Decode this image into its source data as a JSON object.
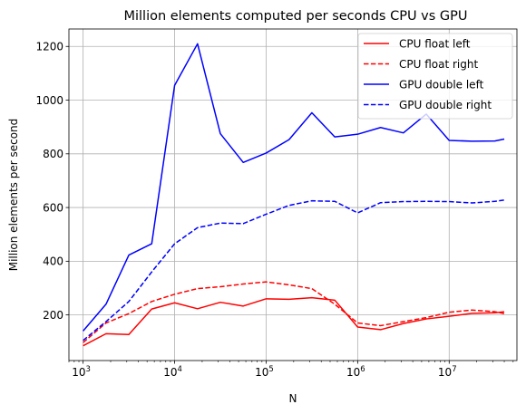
{
  "chart_data": {
    "type": "line",
    "title": "Million elements computed per seconds CPU vs GPU",
    "xlabel": "N",
    "ylabel": "Million elements per second",
    "xscale": "log",
    "xlim": [
      700,
      55000000
    ],
    "ylim": [
      30,
      1265
    ],
    "grid": true,
    "legend_position": "top-right",
    "x_ticks": [
      {
        "value": 1000,
        "base": "10",
        "exp": "3"
      },
      {
        "value": 10000,
        "base": "10",
        "exp": "4"
      },
      {
        "value": 100000,
        "base": "10",
        "exp": "5"
      },
      {
        "value": 1000000,
        "base": "10",
        "exp": "6"
      },
      {
        "value": 10000000,
        "base": "10",
        "exp": "7"
      }
    ],
    "y_ticks": [
      {
        "value": 200,
        "label": "200"
      },
      {
        "value": 400,
        "label": "400"
      },
      {
        "value": 600,
        "label": "600"
      },
      {
        "value": 800,
        "label": "800"
      },
      {
        "value": 1000,
        "label": "1000"
      },
      {
        "value": 1200,
        "label": "1200"
      }
    ],
    "x": [
      1000,
      1780,
      3160,
      5620,
      10000,
      17800,
      31600,
      56200,
      100000,
      178000,
      316000,
      562000,
      1000000,
      1780000,
      3160000,
      5620000,
      10000000,
      17800000,
      31600000,
      40000000
    ],
    "series": [
      {
        "name": "CPU float left",
        "color": "#ff0000",
        "dash": "solid",
        "values": [
          85,
          130,
          127,
          222,
          245,
          223,
          247,
          233,
          260,
          258,
          264,
          255,
          155,
          145,
          168,
          185,
          195,
          206,
          208,
          212
        ]
      },
      {
        "name": "CPU float right",
        "color": "#ff0000",
        "dash": "dashed",
        "values": [
          97,
          170,
          205,
          250,
          277,
          298,
          305,
          315,
          323,
          312,
          298,
          240,
          170,
          160,
          175,
          190,
          210,
          218,
          212,
          205
        ]
      },
      {
        "name": "GPU double left",
        "color": "#0000ff",
        "dash": "solid",
        "values": [
          140,
          240,
          423,
          465,
          1055,
          1210,
          875,
          768,
          803,
          853,
          953,
          863,
          873,
          898,
          878,
          948,
          850,
          847,
          848,
          855
        ]
      },
      {
        "name": "GPU double right",
        "color": "#0000ff",
        "dash": "dashed",
        "values": [
          105,
          175,
          250,
          360,
          465,
          525,
          542,
          540,
          575,
          608,
          625,
          623,
          580,
          618,
          622,
          623,
          622,
          617,
          623,
          628
        ]
      }
    ]
  }
}
